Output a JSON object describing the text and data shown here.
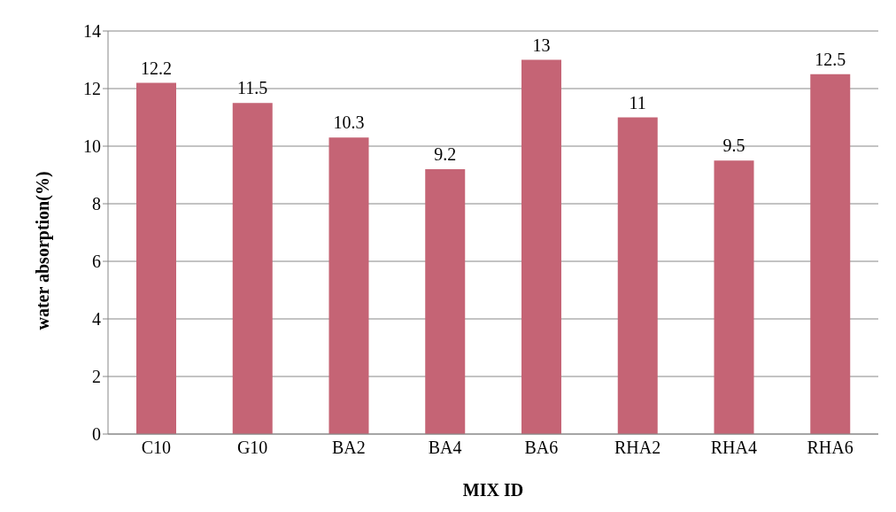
{
  "chart_data": {
    "type": "bar",
    "xlabel": "MIX ID",
    "ylabel": "water absorption(%)",
    "categories": [
      "C10",
      "G10",
      "BA2",
      "BA4",
      "BA6",
      "RHA2",
      "RHA4",
      "RHA6"
    ],
    "values": [
      12.2,
      11.5,
      10.3,
      9.2,
      13,
      11,
      9.5,
      12.5
    ],
    "color": "#c56475",
    "ylim": [
      0,
      14
    ],
    "yticks": [
      0,
      2,
      4,
      6,
      8,
      10,
      12,
      14
    ],
    "grid": "y",
    "data_labels": true
  }
}
